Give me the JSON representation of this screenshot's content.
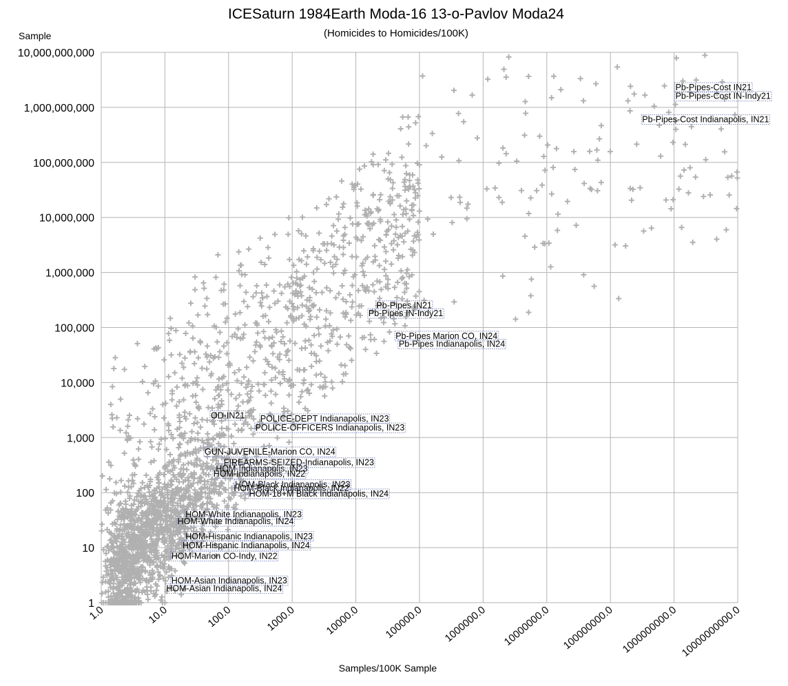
{
  "chart_data": {
    "type": "scatter",
    "title": "ICESaturn 1984Earth Moda-16 13-o-Pavlov Moda24",
    "subtitle": "(Homicides to Homicides/100K)",
    "xlabel": "Samples/100K Sample",
    "ylabel": "Sample",
    "x_scale": "log",
    "y_scale": "log",
    "xlim": [
      1,
      10000000000
    ],
    "ylim": [
      1,
      10000000000
    ],
    "grid": true,
    "marker": "plus",
    "marker_color": "#b0b0b0",
    "x_tick_labels": [
      "1.0",
      "10.0",
      "100.0",
      "1000.0",
      "10000.0",
      "100000.0",
      "1000000.0",
      "10000000.0",
      "100000000.0",
      "1000000000.0",
      "10000000000.0"
    ],
    "y_tick_labels": [
      "1",
      "10",
      "100",
      "1,000",
      "10,000",
      "100,000",
      "1,000,000",
      "10,000,000",
      "100,000,000",
      "1,000,000,000",
      "10,000,000,000"
    ],
    "annotations": [
      {
        "label": "Pb-Pipes-Cost IN21",
        "x": 1000000000.0,
        "y": 2300000000.0
      },
      {
        "label": "Pb-Pipes-Cost IN-Indy21",
        "x": 1000000000.0,
        "y": 1600000000.0
      },
      {
        "label": "Pb-Pipes-Cost Indianapolis, IN21",
        "x": 300000000.0,
        "y": 600000000.0
      },
      {
        "label": "Pb-Pipes IN21",
        "x": 20000,
        "y": 250000
      },
      {
        "label": "Pb-Pipes IN-Indy21",
        "x": 15000,
        "y": 180000
      },
      {
        "label": "Pb-Pipes Marion CO, IN24",
        "x": 40000,
        "y": 70000
      },
      {
        "label": "Pb-Pipes Indianapolis, IN24",
        "x": 45000,
        "y": 50000
      },
      {
        "label": "OD-IN21",
        "x": 50,
        "y": 2500
      },
      {
        "label": "POLICE-DEPT Indianapolis, IN23",
        "x": 300,
        "y": 2200
      },
      {
        "label": "POLICE-OFFICERS Indianapolis, IN23",
        "x": 250,
        "y": 1500
      },
      {
        "label": "GUN-JUVENILE-Marion CO, IN24",
        "x": 40,
        "y": 550
      },
      {
        "label": "FIREARMS-SEIZED-Indianapolis, IN23",
        "x": 80,
        "y": 350
      },
      {
        "label": "HOM-Indianapolis, IN23",
        "x": 60,
        "y": 270
      },
      {
        "label": "HOM-Indianapolis, IN22",
        "x": 55,
        "y": 220
      },
      {
        "label": "HOM-Black Indianapolis, IN23",
        "x": 120,
        "y": 140
      },
      {
        "label": "HOM-Black Indianapolis, IN22",
        "x": 115,
        "y": 120
      },
      {
        "label": "HOM-18+M Black Indianapolis, IN24",
        "x": 200,
        "y": 95
      },
      {
        "label": "HOM-White Indianapolis, IN23",
        "x": 20,
        "y": 40
      },
      {
        "label": "HOM-White Indianapolis, IN24",
        "x": 15,
        "y": 30
      },
      {
        "label": "HOM-Hispanic Indianapolis, IN23",
        "x": 20,
        "y": 16
      },
      {
        "label": "HOM-Hispanic Indianapolis, IN24",
        "x": 18,
        "y": 11
      },
      {
        "label": "HOM-Marion CO-Indy, IN22",
        "x": 12,
        "y": 7
      },
      {
        "label": "HOM-Asian Indianapolis, IN23",
        "x": 12,
        "y": 2.5
      },
      {
        "label": "HOM-Asian Indianapolis, IN24",
        "x": 10,
        "y": 1.8
      }
    ]
  }
}
